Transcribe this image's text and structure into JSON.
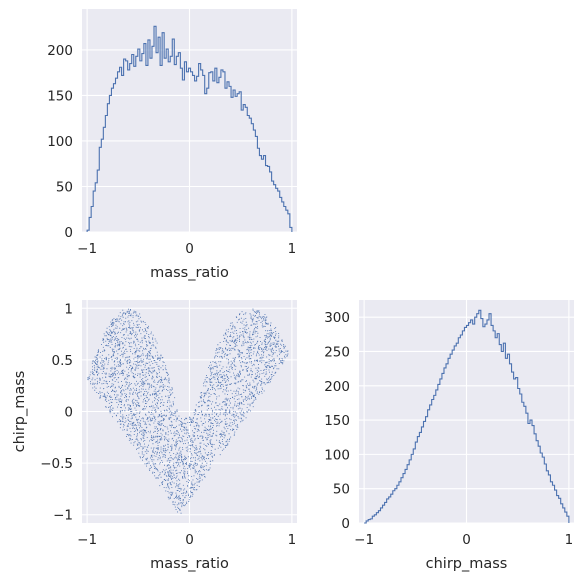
{
  "chart_data": [
    {
      "type": "step-histogram",
      "panel": "top-left",
      "xlabel": "mass_ratio",
      "ylabel": "",
      "xlim": [
        -1.05,
        1.05
      ],
      "ylim": [
        0,
        245
      ],
      "xticks": [
        -1,
        0,
        1
      ],
      "yticks": [
        0,
        50,
        100,
        150,
        200
      ],
      "grid": true,
      "color": "#4c72b0",
      "bin_edges_range": [
        -1,
        1
      ],
      "counts": [
        2,
        16,
        28,
        45,
        54,
        68,
        93,
        102,
        115,
        128,
        141,
        150,
        158,
        163,
        169,
        176,
        181,
        172,
        190,
        188,
        178,
        185,
        195,
        182,
        193,
        201,
        188,
        196,
        207,
        183,
        211,
        191,
        204,
        226,
        197,
        214,
        183,
        219,
        191,
        201,
        187,
        193,
        212,
        184,
        193,
        197,
        180,
        167,
        187,
        176,
        180,
        176,
        172,
        166,
        171,
        185,
        178,
        172,
        152,
        158,
        175,
        176,
        166,
        180,
        164,
        170,
        178,
        176,
        158,
        165,
        160,
        148,
        156,
        149,
        152,
        154,
        134,
        140,
        137,
        128,
        125,
        119,
        112,
        105,
        92,
        84,
        80,
        84,
        73,
        72,
        66,
        56,
        52,
        48,
        45,
        38,
        33,
        28,
        24,
        20,
        5
      ]
    },
    {
      "type": "scatter",
      "panel": "bottom-left",
      "xlabel": "mass_ratio",
      "ylabel": "chirp_mass",
      "xlim": [
        -1.05,
        1.05
      ],
      "ylim": [
        -1.08,
        1.08
      ],
      "xticks": [
        -1,
        0,
        1
      ],
      "yticks": [
        -1.0,
        -0.5,
        0.0,
        0.5,
        1.0
      ],
      "grid": true,
      "color": "#4c72b0",
      "point_count": 14000,
      "relationship": "V-shaped cloud: upper lobes peak near mass_ratio ±0.6 at chirp_mass ≈ 1.0; lower tip reaches chirp_mass ≈ -1.0 near mass_ratio ≈ -0.1"
    },
    {
      "type": "step-histogram",
      "panel": "bottom-right",
      "xlabel": "chirp_mass",
      "ylabel": "",
      "xlim": [
        -1.05,
        1.05
      ],
      "ylim": [
        0,
        325
      ],
      "xticks": [
        -1,
        0,
        1
      ],
      "yticks": [
        0,
        50,
        100,
        150,
        200,
        250,
        300
      ],
      "grid": true,
      "color": "#4c72b0",
      "bin_edges_range": [
        -1,
        1
      ],
      "counts": [
        0,
        3,
        5,
        6,
        10,
        12,
        15,
        18,
        22,
        26,
        30,
        35,
        38,
        42,
        47,
        50,
        55,
        60,
        66,
        72,
        78,
        85,
        92,
        100,
        108,
        118,
        126,
        132,
        140,
        148,
        155,
        165,
        172,
        180,
        186,
        194,
        202,
        210,
        218,
        226,
        232,
        240,
        246,
        252,
        258,
        262,
        270,
        274,
        280,
        285,
        288,
        292,
        296,
        290,
        300,
        305,
        310,
        298,
        286,
        290,
        296,
        305,
        288,
        280,
        270,
        276,
        260,
        250,
        262,
        240,
        246,
        232,
        220,
        210,
        212,
        196,
        188,
        176,
        170,
        160,
        145,
        150,
        142,
        130,
        120,
        112,
        102,
        96,
        86,
        76,
        70,
        60,
        55,
        48,
        40,
        36,
        28,
        22,
        16,
        10
      ]
    }
  ]
}
